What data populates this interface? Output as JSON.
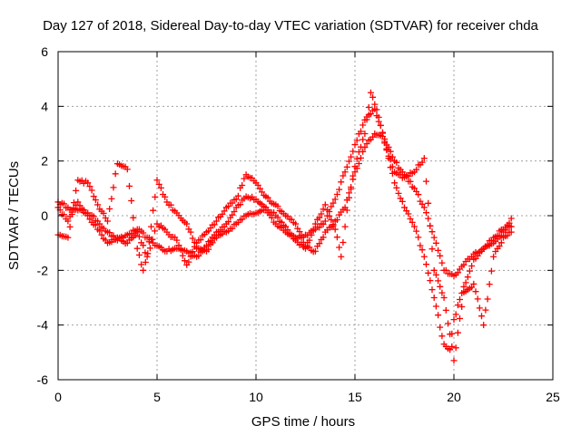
{
  "chart_data": {
    "type": "scatter",
    "title": "Day 127 of 2018, Sidereal Day-to-day VTEC variation (SDTVAR) for receiver chda",
    "xlabel": "GPS time / hours",
    "ylabel": "SDTVAR / TECUs",
    "xlim": [
      0,
      25
    ],
    "ylim": [
      -6,
      6
    ],
    "x_ticks": [
      0,
      5,
      10,
      15,
      20,
      25
    ],
    "y_ticks": [
      -6,
      -4,
      -2,
      0,
      2,
      4,
      6
    ],
    "x_tick_labels": [
      "0",
      "5",
      "10",
      "15",
      "20",
      "25"
    ],
    "y_tick_labels": [
      "-6",
      "-4",
      "-2",
      "0",
      "2",
      "4",
      "6"
    ],
    "grid": true,
    "marker": "plus",
    "color": "#ff0000",
    "series": [
      {
        "points": [
          [
            0.0,
            0.5
          ],
          [
            0.5,
            0.3
          ],
          [
            1.0,
            0.2
          ],
          [
            1.5,
            0.1
          ],
          [
            2.0,
            -0.2
          ],
          [
            2.5,
            -0.6
          ],
          [
            3.0,
            -0.9
          ],
          [
            3.5,
            -0.7
          ],
          [
            4.0,
            -0.5
          ],
          [
            4.5,
            -0.8
          ],
          [
            5.0,
            -1.1
          ],
          [
            5.5,
            -1.3
          ],
          [
            6.0,
            -1.2
          ],
          [
            6.5,
            -1.3
          ],
          [
            7.0,
            -1.5
          ],
          [
            7.5,
            -1.1
          ],
          [
            8.0,
            -0.6
          ],
          [
            8.5,
            -0.3
          ],
          [
            9.0,
            0.3
          ],
          [
            9.5,
            0.7
          ],
          [
            10.0,
            0.6
          ],
          [
            10.5,
            0.2
          ],
          [
            11.0,
            -0.3
          ],
          [
            11.5,
            -0.6
          ],
          [
            12.0,
            -0.8
          ],
          [
            12.5,
            -0.7
          ],
          [
            13.0,
            -0.5
          ],
          [
            13.5,
            -0.2
          ],
          [
            14.0,
            0.6
          ],
          [
            14.5,
            1.6
          ],
          [
            15.0,
            2.6
          ],
          [
            15.5,
            3.5
          ],
          [
            16.0,
            3.9
          ],
          [
            16.3,
            3.3
          ],
          [
            16.7,
            2.1
          ],
          [
            17.0,
            1.2
          ],
          [
            17.5,
            0.3
          ],
          [
            18.0,
            -0.4
          ],
          [
            18.5,
            -1.5
          ],
          [
            19.0,
            -3.0
          ],
          [
            19.5,
            -4.7
          ],
          [
            19.8,
            -4.9
          ],
          [
            20.0,
            -3.8
          ],
          [
            20.5,
            -2.6
          ],
          [
            21.0,
            -1.6
          ],
          [
            21.5,
            -1.2
          ],
          [
            22.0,
            -0.8
          ],
          [
            22.5,
            -0.5
          ],
          [
            22.9,
            -0.4
          ]
        ]
      },
      {
        "points": [
          [
            0.0,
            -0.7
          ],
          [
            0.5,
            -0.8
          ],
          [
            1.0,
            1.3
          ],
          [
            1.5,
            1.2
          ],
          [
            2.0,
            0.4
          ],
          [
            2.5,
            -0.2
          ],
          [
            3.0,
            1.9
          ],
          [
            3.5,
            1.7
          ],
          [
            4.0,
            -1.2
          ],
          [
            4.3,
            -2.0
          ],
          [
            5.0,
            -0.3
          ],
          [
            5.5,
            -0.6
          ],
          [
            6.0,
            -0.9
          ],
          [
            6.5,
            -1.8
          ],
          [
            7.0,
            -1.0
          ],
          [
            7.5,
            -0.6
          ],
          [
            8.0,
            -0.2
          ],
          [
            8.5,
            0.3
          ],
          [
            9.0,
            0.6
          ],
          [
            9.5,
            1.5
          ],
          [
            10.0,
            1.2
          ],
          [
            10.5,
            0.7
          ],
          [
            11.0,
            0.4
          ],
          [
            11.5,
            0.0
          ],
          [
            12.0,
            -0.3
          ],
          [
            12.5,
            -1.1
          ],
          [
            13.0,
            -1.3
          ],
          [
            13.5,
            -0.6
          ],
          [
            14.0,
            -0.2
          ],
          [
            14.5,
            0.3
          ],
          [
            15.0,
            1.6
          ],
          [
            15.5,
            2.5
          ],
          [
            16.0,
            3.0
          ],
          [
            16.5,
            2.8
          ],
          [
            17.0,
            2.0
          ],
          [
            17.5,
            1.5
          ],
          [
            18.0,
            1.0
          ],
          [
            18.5,
            0.3
          ],
          [
            19.0,
            -0.8
          ],
          [
            19.5,
            -2.0
          ],
          [
            20.0,
            -2.2
          ],
          [
            20.5,
            -1.8
          ],
          [
            21.0,
            -1.4
          ],
          [
            21.5,
            -1.2
          ],
          [
            22.0,
            -1.0
          ],
          [
            22.5,
            -0.6
          ],
          [
            22.9,
            -0.1
          ]
        ]
      },
      {
        "points": [
          [
            0.0,
            0.3
          ],
          [
            0.5,
            -0.2
          ],
          [
            1.0,
            0.5
          ],
          [
            1.5,
            0.0
          ],
          [
            2.0,
            -0.5
          ],
          [
            2.5,
            -1.0
          ],
          [
            3.0,
            -0.8
          ],
          [
            3.5,
            -1.0
          ],
          [
            4.0,
            -0.6
          ],
          [
            4.5,
            -1.5
          ],
          [
            5.0,
            1.3
          ],
          [
            5.5,
            0.5
          ],
          [
            6.0,
            0.1
          ],
          [
            6.5,
            -0.3
          ],
          [
            7.0,
            -1.2
          ],
          [
            7.5,
            -1.3
          ],
          [
            8.0,
            -0.8
          ],
          [
            8.5,
            -0.6
          ],
          [
            9.0,
            -0.3
          ],
          [
            9.5,
            0.0
          ],
          [
            10.0,
            0.1
          ],
          [
            10.5,
            0.3
          ],
          [
            11.0,
            0.0
          ],
          [
            11.5,
            -0.4
          ],
          [
            12.0,
            -0.9
          ],
          [
            12.5,
            -1.2
          ],
          [
            13.0,
            -0.3
          ],
          [
            13.5,
            0.4
          ],
          [
            14.0,
            -0.5
          ],
          [
            14.3,
            -1.5
          ],
          [
            14.6,
            0.2
          ],
          [
            15.0,
            1.8
          ],
          [
            15.5,
            3.0
          ],
          [
            15.8,
            4.5
          ],
          [
            16.2,
            3.6
          ],
          [
            16.6,
            2.4
          ],
          [
            17.0,
            1.6
          ],
          [
            17.5,
            1.4
          ],
          [
            18.0,
            1.6
          ],
          [
            18.5,
            2.1
          ],
          [
            19.0,
            -2.0
          ],
          [
            19.5,
            -3.0
          ],
          [
            20.0,
            -5.3
          ],
          [
            20.5,
            -2.8
          ],
          [
            21.0,
            -2.5
          ],
          [
            21.5,
            -4.0
          ],
          [
            22.0,
            -1.5
          ],
          [
            22.5,
            -0.8
          ],
          [
            22.9,
            -0.6
          ]
        ]
      }
    ]
  }
}
